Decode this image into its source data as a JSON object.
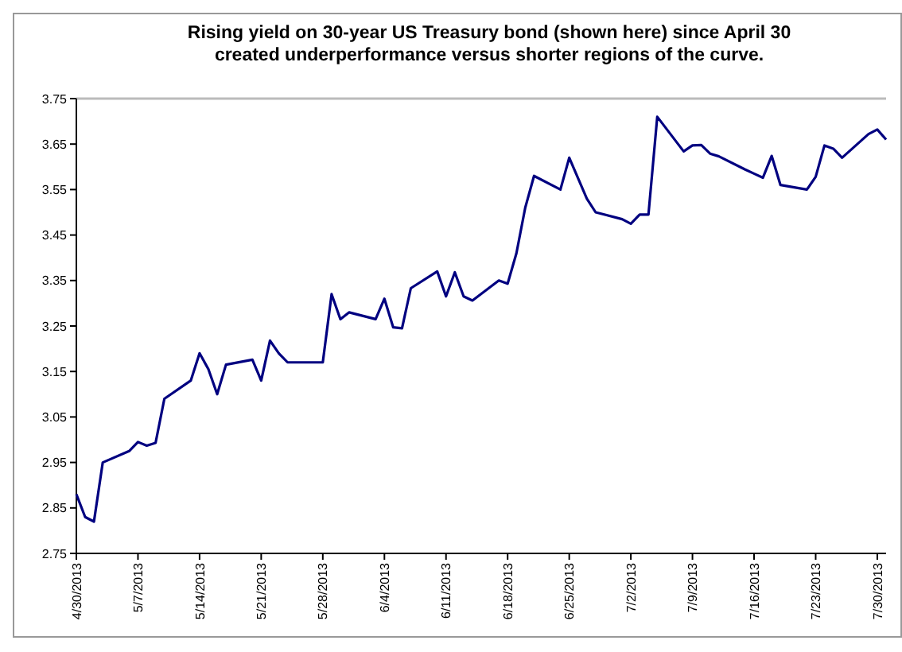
{
  "chart_data": {
    "type": "line",
    "title": "Rising yield on 30-year US Treasury bond (shown here) since April 30 created underperformance versus shorter regions of the curve.",
    "series": [
      {
        "color": "#000080",
        "x": [
          "2013-04-30",
          "2013-05-01",
          "2013-05-02",
          "2013-05-03",
          "2013-05-06",
          "2013-05-07",
          "2013-05-08",
          "2013-05-09",
          "2013-05-10",
          "2013-05-13",
          "2013-05-14",
          "2013-05-15",
          "2013-05-16",
          "2013-05-17",
          "2013-05-20",
          "2013-05-21",
          "2013-05-22",
          "2013-05-23",
          "2013-05-24",
          "2013-05-28",
          "2013-05-29",
          "2013-05-30",
          "2013-05-31",
          "2013-06-03",
          "2013-06-04",
          "2013-06-05",
          "2013-06-06",
          "2013-06-07",
          "2013-06-10",
          "2013-06-11",
          "2013-06-12",
          "2013-06-13",
          "2013-06-14",
          "2013-06-17",
          "2013-06-18",
          "2013-06-19",
          "2013-06-20",
          "2013-06-21",
          "2013-06-24",
          "2013-06-25",
          "2013-06-26",
          "2013-06-27",
          "2013-06-28",
          "2013-07-01",
          "2013-07-02",
          "2013-07-03",
          "2013-07-04",
          "2013-07-05",
          "2013-07-08",
          "2013-07-09",
          "2013-07-10",
          "2013-07-11",
          "2013-07-12",
          "2013-07-15",
          "2013-07-16",
          "2013-07-17",
          "2013-07-18",
          "2013-07-19",
          "2013-07-22",
          "2013-07-23",
          "2013-07-24",
          "2013-07-25",
          "2013-07-26",
          "2013-07-29",
          "2013-07-30",
          "2013-07-31"
        ],
        "values": [
          2.88,
          2.83,
          2.82,
          2.95,
          2.975,
          2.995,
          2.987,
          2.993,
          3.09,
          3.13,
          3.19,
          3.155,
          3.1,
          3.165,
          3.176,
          3.13,
          3.218,
          3.19,
          3.17,
          3.17,
          3.32,
          3.265,
          3.28,
          3.265,
          3.31,
          3.247,
          3.245,
          3.333,
          3.37,
          3.315,
          3.368,
          3.315,
          3.306,
          3.35,
          3.343,
          3.41,
          3.51,
          3.58,
          3.55,
          3.62,
          3.575,
          3.53,
          3.5,
          3.485,
          3.475,
          3.495,
          3.495,
          3.71,
          3.634,
          3.647,
          3.648,
          3.629,
          3.623,
          3.594,
          3.585,
          3.576,
          3.624,
          3.56,
          3.55,
          3.578,
          3.647,
          3.64,
          3.62,
          3.672,
          3.682,
          3.66
        ]
      }
    ],
    "xlim": [
      "2013-04-30",
      "2013-07-31"
    ],
    "xticks": [
      {
        "value": "2013-04-30",
        "label": "4/30/2013"
      },
      {
        "value": "2013-05-07",
        "label": "5/7/2013"
      },
      {
        "value": "2013-05-14",
        "label": "5/14/2013"
      },
      {
        "value": "2013-05-21",
        "label": "5/21/2013"
      },
      {
        "value": "2013-05-28",
        "label": "5/28/2013"
      },
      {
        "value": "2013-06-04",
        "label": "6/4/2013"
      },
      {
        "value": "2013-06-11",
        "label": "6/11/2013"
      },
      {
        "value": "2013-06-18",
        "label": "6/18/2013"
      },
      {
        "value": "2013-06-25",
        "label": "6/25/2013"
      },
      {
        "value": "2013-07-02",
        "label": "7/2/2013"
      },
      {
        "value": "2013-07-09",
        "label": "7/9/2013"
      },
      {
        "value": "2013-07-16",
        "label": "7/16/2013"
      },
      {
        "value": "2013-07-23",
        "label": "7/23/2013"
      },
      {
        "value": "2013-07-30",
        "label": "7/30/2013"
      }
    ],
    "ylim": [
      2.75,
      3.75
    ],
    "yticks": [
      {
        "value": 2.75,
        "label": "2.75"
      },
      {
        "value": 2.85,
        "label": "2.85"
      },
      {
        "value": 2.95,
        "label": "2.95"
      },
      {
        "value": 3.05,
        "label": "3.05"
      },
      {
        "value": 3.15,
        "label": "3.15"
      },
      {
        "value": 3.25,
        "label": "3.25"
      },
      {
        "value": 3.35,
        "label": "3.35"
      },
      {
        "value": 3.45,
        "label": "3.45"
      },
      {
        "value": 3.55,
        "label": "3.55"
      },
      {
        "value": 3.65,
        "label": "3.65"
      },
      {
        "value": 3.75,
        "label": "3.75"
      }
    ],
    "grid": false,
    "marker": "none",
    "line_style": "solid"
  }
}
